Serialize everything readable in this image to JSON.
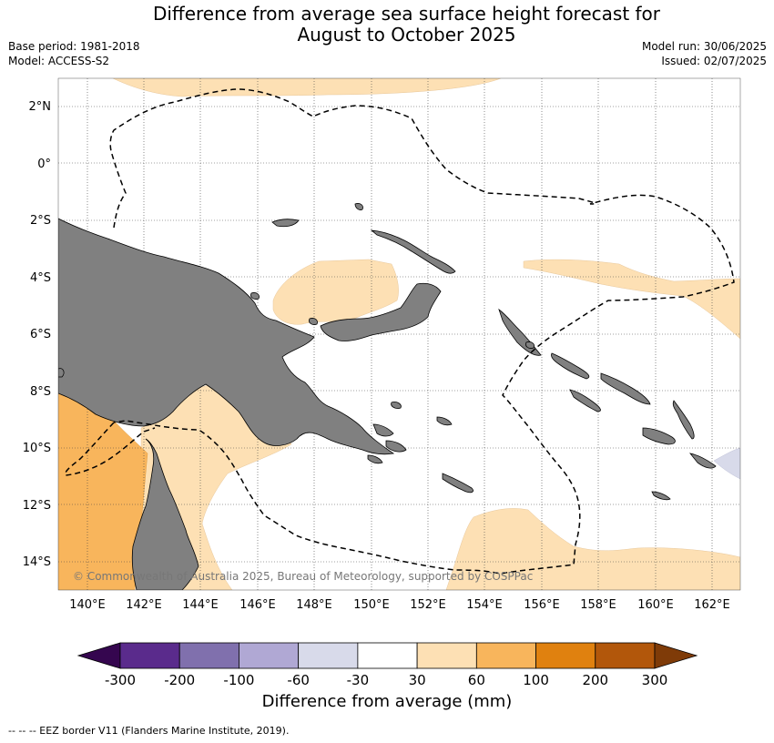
{
  "title": {
    "line1": "Difference from average sea surface height forecast for",
    "line2": "August to October 2025"
  },
  "meta": {
    "base_period": "Base period: 1981-2018",
    "model": "Model: ACCESS-S2",
    "model_run": "Model run: 30/06/2025",
    "issued": "Issued: 02/07/2025"
  },
  "map": {
    "lat_labels": [
      "2°N",
      "0°",
      "2°S",
      "4°S",
      "6°S",
      "8°S",
      "10°S",
      "12°S",
      "14°S"
    ],
    "lon_labels": [
      "140°E",
      "142°E",
      "144°E",
      "146°E",
      "148°E",
      "150°E",
      "152°E",
      "154°E",
      "156°E",
      "158°E",
      "160°E",
      "162°E"
    ],
    "copyright": "© Commonwealth of Australia 2025, Bureau of Meteorology, supported by COSPPac",
    "land_color": "#808080"
  },
  "colorbar": {
    "title": "Difference from average (mm)",
    "ticks": [
      "-300",
      "-200",
      "-100",
      "-60",
      "-30",
      "30",
      "60",
      "100",
      "200",
      "300"
    ],
    "colors": [
      "#5a2b8c",
      "#8070ad",
      "#b0a8d4",
      "#d8daea",
      "#ffffff",
      "#fde0b4",
      "#f8b55c",
      "#e0810f",
      "#b2570b"
    ],
    "under_color": "#35064f",
    "over_color": "#7f3b08"
  },
  "footnote": "--  --  -- EEZ border V11 (Flanders Marine Institute, 2019)."
}
